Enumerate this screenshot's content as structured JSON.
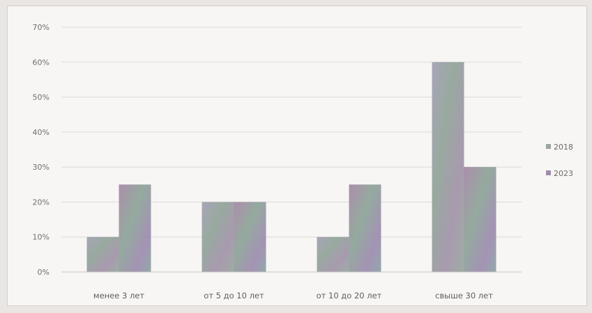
{
  "chart_data": {
    "type": "bar",
    "categories": [
      "менее 3 лет",
      "от 5 до 10 лет",
      "от 10 до 20 лет",
      "свыше 30 лет"
    ],
    "series": [
      {
        "name": "2018",
        "values": [
          10,
          20,
          10,
          60
        ],
        "color": "#9fa7a0"
      },
      {
        "name": "2023",
        "values": [
          25,
          20,
          25,
          30
        ],
        "color": "#9a8ba8"
      }
    ],
    "y_ticks": [
      "0%",
      "10%",
      "20%",
      "30%",
      "40%",
      "50%",
      "60%",
      "70%"
    ],
    "ylim": [
      0,
      70
    ],
    "y_unit": "%",
    "grid": true,
    "legend_position": "right"
  }
}
